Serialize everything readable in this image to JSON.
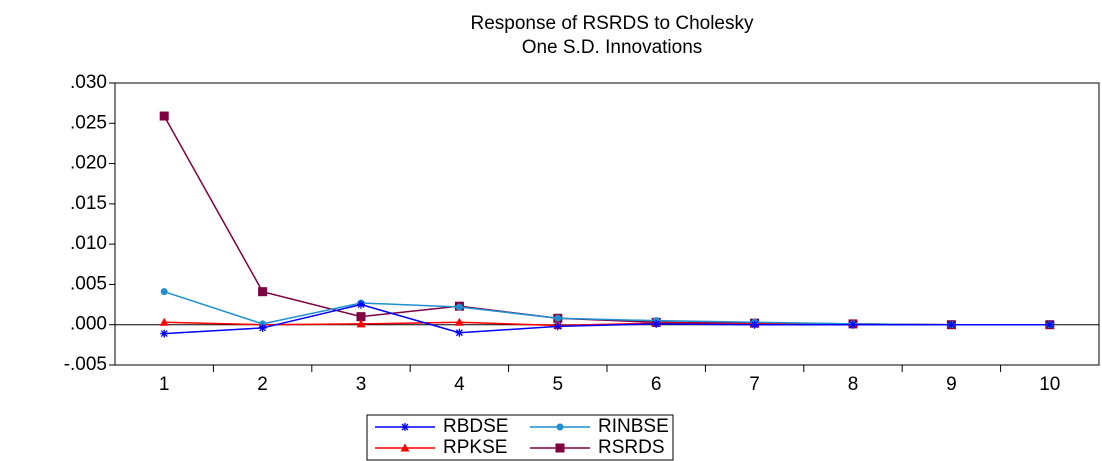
{
  "chart_data": {
    "type": "line",
    "title": [
      "Response of RSRDS to Cholesky",
      "One S.D. Innovations"
    ],
    "categories": [
      "1",
      "2",
      "3",
      "4",
      "5",
      "6",
      "7",
      "8",
      "9",
      "10"
    ],
    "series": [
      {
        "name": "RBDSE",
        "color": "#0000ff",
        "marker": "star",
        "values": [
          -0.0011,
          -0.0004,
          0.0025,
          -0.001,
          -0.0002,
          0.0001,
          0.0,
          0.0,
          0.0,
          0.0
        ]
      },
      {
        "name": "RINBSE",
        "color": "#1f8fd0",
        "marker": "circle",
        "values": [
          0.0041,
          0.0001,
          0.0027,
          0.0022,
          0.0008,
          0.0005,
          0.0003,
          0.0001,
          0.0,
          0.0
        ]
      },
      {
        "name": "RPKSE",
        "color": "#ff0000",
        "marker": "triangle",
        "values": [
          0.0003,
          0.0,
          0.0001,
          0.0003,
          -0.0001,
          0.0002,
          0.0001,
          0.0001,
          0.0,
          0.0
        ]
      },
      {
        "name": "RSRDS",
        "color": "#7f0040",
        "marker": "square",
        "values": [
          0.0259,
          0.0041,
          0.001,
          0.0023,
          0.0008,
          0.0003,
          0.0002,
          0.0001,
          0.0,
          0.0
        ]
      }
    ],
    "ylim": [
      -0.005,
      0.03
    ],
    "yticks": [
      {
        "value": -0.005,
        "label": "-.005"
      },
      {
        "value": 0,
        "label": ".000"
      },
      {
        "value": 0.005,
        "label": ".005"
      },
      {
        "value": 0.01,
        "label": ".010"
      },
      {
        "value": 0.015,
        "label": ".015"
      },
      {
        "value": 0.02,
        "label": ".020"
      },
      {
        "value": 0.025,
        "label": ".025"
      },
      {
        "value": 0.03,
        "label": ".030"
      }
    ],
    "zero_line": true,
    "legend": "bottom"
  }
}
